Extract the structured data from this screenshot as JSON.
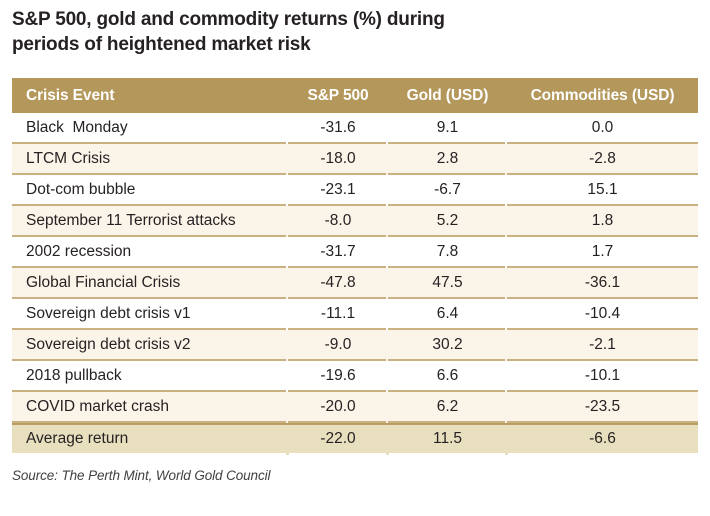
{
  "figure": {
    "title": "S&P 500, gold and commodity returns (%) during\nperiods of heightened market risk",
    "source": "Source: The Perth Mint, World Gold Council"
  },
  "colors": {
    "header_gold": "#b4975a",
    "row_cream": "#fbf5e9",
    "divider_tan": "#c9b181",
    "average_row_bg": "#e8dfbe",
    "average_row_border": "#b99d62",
    "text": "#262224"
  },
  "table": {
    "columns": [
      "Crisis Event",
      "S&P 500",
      "Gold (USD)",
      "Commodities (USD)"
    ],
    "rows": [
      [
        "Black  Monday",
        "-31.6",
        "9.1",
        "0.0"
      ],
      [
        "LTCM Crisis",
        "-18.0",
        "2.8",
        "-2.8"
      ],
      [
        "Dot-com bubble",
        "-23.1",
        "-6.7",
        "15.1"
      ],
      [
        "September 11 Terrorist attacks",
        "-8.0",
        "5.2",
        "1.8"
      ],
      [
        "2002 recession",
        "-31.7",
        "7.8",
        "1.7"
      ],
      [
        "Global Financial Crisis",
        "-47.8",
        "47.5",
        "-36.1"
      ],
      [
        "Sovereign debt crisis v1",
        "-11.1",
        "6.4",
        "-10.4"
      ],
      [
        "Sovereign debt crisis v2",
        "-9.0",
        "30.2",
        "-2.1"
      ],
      [
        "2018 pullback",
        "-19.6",
        "6.6",
        "-10.1"
      ],
      [
        "COVID market crash",
        "-20.0",
        "6.2",
        "-23.5"
      ]
    ],
    "average_row": [
      "Average return",
      "-22.0",
      "11.5",
      "-6.6"
    ]
  },
  "chart_data": {
    "type": "table",
    "title": "S&P 500, gold and commodity returns (%) during periods of heightened market risk",
    "columns": [
      "Crisis Event",
      "S&P 500",
      "Gold (USD)",
      "Commodities (USD)"
    ],
    "categories": [
      "Black Monday",
      "LTCM Crisis",
      "Dot-com bubble",
      "September 11 Terrorist attacks",
      "2002 recession",
      "Global Financial Crisis",
      "Sovereign debt crisis v1",
      "Sovereign debt crisis v2",
      "2018 pullback",
      "COVID market crash",
      "Average return"
    ],
    "series": [
      {
        "name": "S&P 500",
        "values": [
          -31.6,
          -18.0,
          -23.1,
          -8.0,
          -31.7,
          -47.8,
          -11.1,
          -9.0,
          -19.6,
          -20.0,
          -22.0
        ]
      },
      {
        "name": "Gold (USD)",
        "values": [
          9.1,
          2.8,
          -6.7,
          5.2,
          7.8,
          47.5,
          6.4,
          30.2,
          6.6,
          6.2,
          11.5
        ]
      },
      {
        "name": "Commodities (USD)",
        "values": [
          0.0,
          -2.8,
          15.1,
          1.8,
          1.7,
          -36.1,
          -10.4,
          -2.1,
          -10.1,
          -23.5,
          -6.6
        ]
      }
    ],
    "units": "percent",
    "source": "Source: The Perth Mint, World Gold Council"
  }
}
